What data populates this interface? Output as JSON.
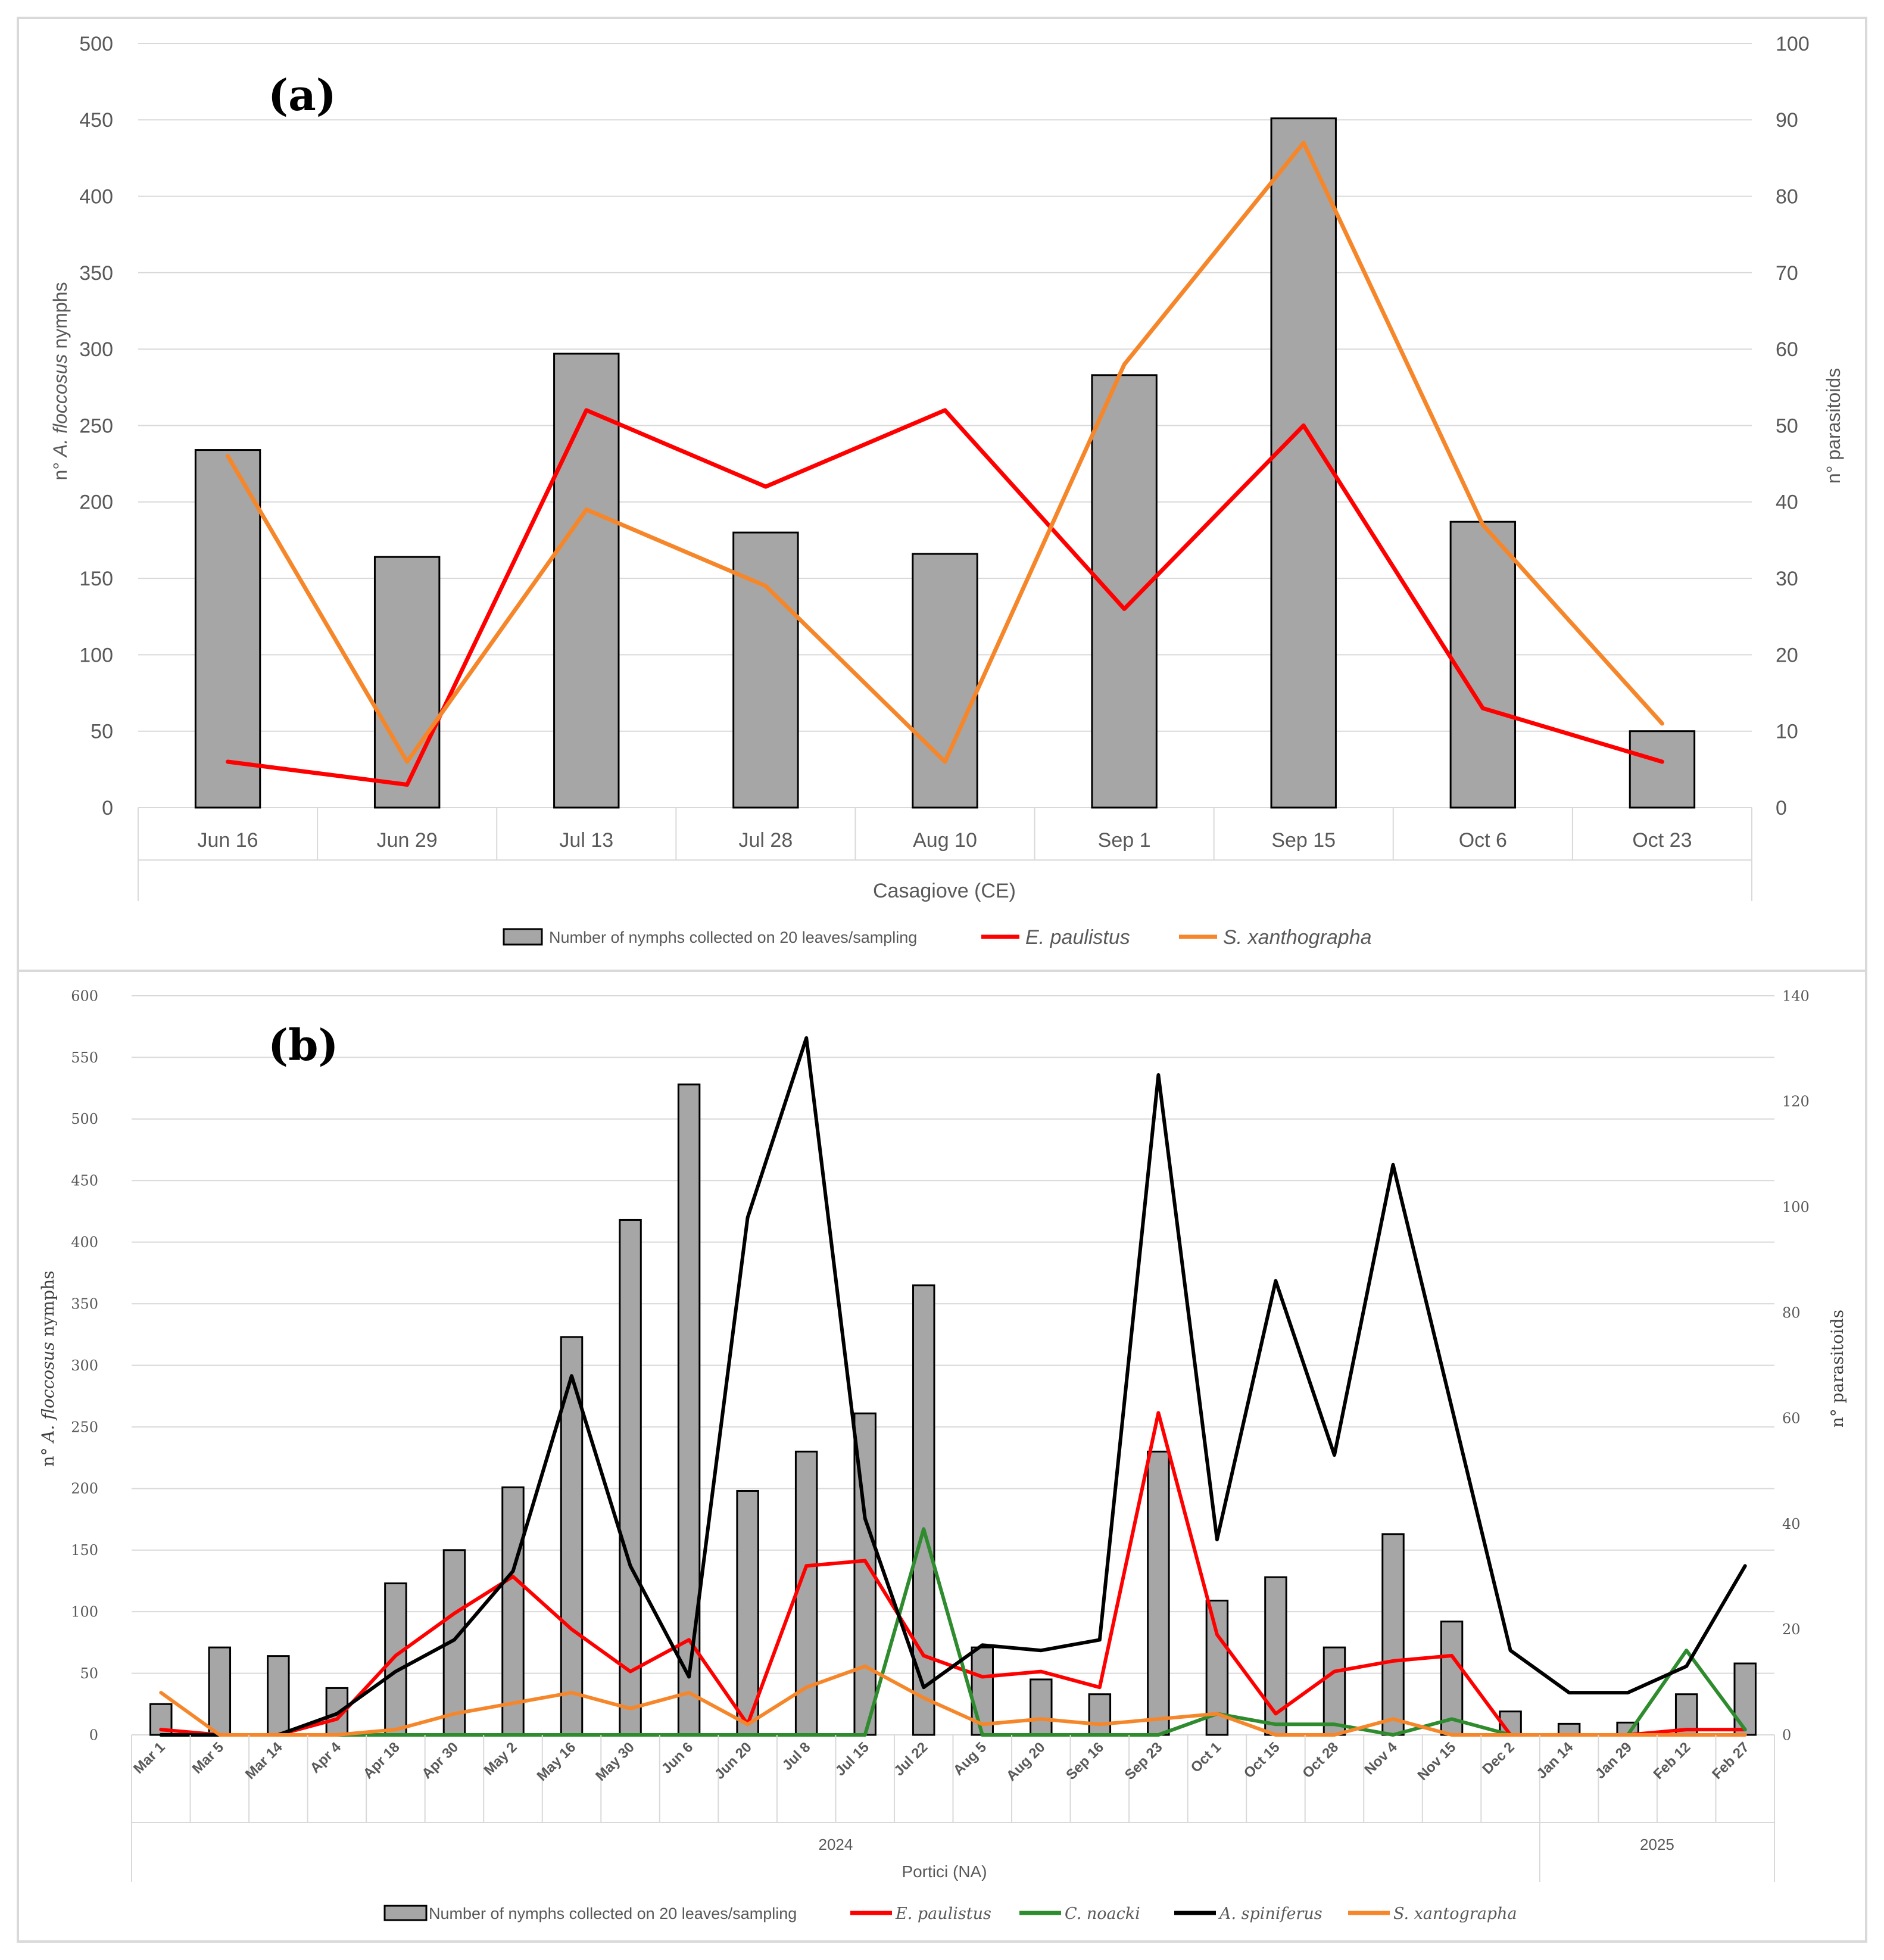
{
  "colors": {
    "bar_fill": "#a6a6a6",
    "e_paulistus": "#ff0000",
    "s_xanthographa": "#f6862a",
    "c_noacki": "#2e8b2e",
    "a_spiniferus": "#000000",
    "grid": "#d9d9d9",
    "axis_text": "#595959"
  },
  "chart_data": [
    {
      "type": "bar+line",
      "panel_label": "(a)",
      "site": "Casagiove (CE)",
      "ylabel_left": {
        "prefix": "n° ",
        "species": "A. floccosus",
        "suffix": " nymphs"
      },
      "ylabel_right": "n° parasitoids",
      "ylim_left": [
        0,
        500
      ],
      "ylim_right": [
        0,
        100
      ],
      "yticks_left": [
        "0",
        "50",
        "100",
        "150",
        "200",
        "250",
        "300",
        "350",
        "400",
        "450",
        "500"
      ],
      "yticks_right": [
        "0",
        "10",
        "20",
        "30",
        "40",
        "50",
        "60",
        "70",
        "80",
        "90",
        "100"
      ],
      "categories": [
        "Jun 16",
        "Jun 29",
        "Jul 13",
        "Jul 28",
        "Aug 10",
        "Sep 1",
        "Sep 15",
        "Oct 6",
        "Oct 23"
      ],
      "bars": {
        "name": "Number of nymphs collected on 20 leaves/sampling",
        "values": [
          234,
          164,
          297,
          180,
          166,
          283,
          451,
          187,
          50
        ]
      },
      "lines": [
        {
          "name": "E. paulistus",
          "color_key": "e_paulistus",
          "values": [
            6,
            3,
            52,
            42,
            52,
            26,
            50,
            13,
            6
          ]
        },
        {
          "name": "S. xanthographa",
          "color_key": "s_xanthographa",
          "values": [
            46,
            6,
            39,
            29,
            6,
            58,
            87,
            37,
            11
          ]
        }
      ]
    },
    {
      "type": "bar+line",
      "panel_label": "(b)",
      "site": "Portici (NA)",
      "ylabel_left": {
        "prefix": "n° ",
        "species": "A. floccosus",
        "suffix": " nymphs"
      },
      "ylabel_right": "n° parasitoids",
      "ylim_left": [
        0,
        600
      ],
      "ylim_right": [
        0,
        140
      ],
      "yticks_left": [
        "0",
        "50",
        "100",
        "150",
        "200",
        "250",
        "300",
        "350",
        "400",
        "450",
        "500",
        "550",
        "600"
      ],
      "yticks_right": [
        "0",
        "20",
        "40",
        "60",
        "80",
        "100",
        "120",
        "140"
      ],
      "categories": [
        "Mar 1",
        "Mar 5",
        "Mar 14",
        "Apr 4",
        "Apr 18",
        "Apr 30",
        "May 2",
        "May 16",
        "May 30",
        "Jun 6",
        "Jun 20",
        "Jul 8",
        "Jul 15",
        "Jul 22",
        "Aug 5",
        "Aug 20",
        "Sep 16",
        "Sep 23",
        "Oct 1",
        "Oct 15",
        "Oct 28",
        "Nov 4",
        "Nov 15",
        "Dec 2",
        "Jan 14",
        "Jan 29",
        "Feb 12",
        "Feb 27"
      ],
      "year_groups": [
        {
          "label": "2024",
          "count": 24
        },
        {
          "label": "2025",
          "count": 4
        }
      ],
      "bars": {
        "name": "Number of nymphs collected on 20 leaves/sampling",
        "values": [
          25,
          71,
          64,
          38,
          123,
          150,
          201,
          323,
          418,
          528,
          198,
          230,
          261,
          365,
          71,
          45,
          33,
          230,
          109,
          128,
          71,
          163,
          92,
          19,
          9,
          10,
          33,
          58
        ]
      },
      "lines": [
        {
          "name": "E. paulistus",
          "color_key": "e_paulistus",
          "values": [
            1,
            0,
            0,
            3,
            15,
            23,
            30,
            20,
            12,
            18,
            2,
            32,
            33,
            15,
            11,
            12,
            9,
            61,
            19,
            4,
            12,
            14,
            15,
            0,
            0,
            0,
            1,
            1
          ]
        },
        {
          "name": "C. noacki",
          "color_key": "c_noacki",
          "values": [
            0,
            0,
            0,
            0,
            0,
            0,
            0,
            0,
            0,
            0,
            0,
            0,
            0,
            39,
            0,
            0,
            0,
            0,
            4,
            2,
            2,
            0,
            3,
            0,
            0,
            0,
            16,
            1
          ]
        },
        {
          "name": "A. spiniferus",
          "color_key": "a_spiniferus",
          "values": [
            0,
            0,
            0,
            4,
            12,
            18,
            31,
            68,
            32,
            11,
            98,
            132,
            41,
            9,
            17,
            16,
            18,
            125,
            37,
            86,
            53,
            108,
            62,
            16,
            8,
            8,
            13,
            32
          ]
        },
        {
          "name": "S. xantographa",
          "color_key": "s_xanthographa",
          "values": [
            8,
            0,
            0,
            0,
            1,
            4,
            6,
            8,
            5,
            8,
            2,
            9,
            13,
            7,
            2,
            3,
            2,
            3,
            4,
            0,
            0,
            3,
            0,
            0,
            0,
            0,
            0,
            0
          ]
        }
      ]
    }
  ]
}
